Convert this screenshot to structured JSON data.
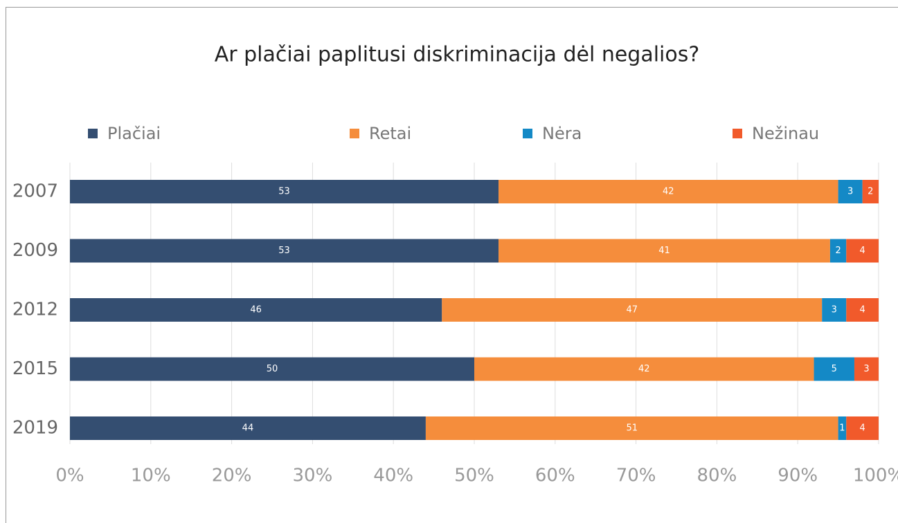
{
  "chart_data": {
    "type": "stacked_bar_horizontal",
    "title": "Ar plačiai paplitusi diskriminacija dėl negalios?",
    "categories": [
      "2007",
      "2009",
      "2012",
      "2015",
      "2019"
    ],
    "series": [
      {
        "name": "Plačiai",
        "color": "#344e71",
        "values": [
          53,
          53,
          46,
          50,
          44
        ]
      },
      {
        "name": "Retai",
        "color": "#f58d3c",
        "values": [
          42,
          41,
          47,
          42,
          51
        ]
      },
      {
        "name": "Nėra",
        "color": "#1489c6",
        "values": [
          3,
          2,
          3,
          5,
          1
        ]
      },
      {
        "name": "Nežinau",
        "color": "#f15a2b",
        "values": [
          2,
          4,
          4,
          3,
          4
        ]
      }
    ],
    "xlim": [
      0,
      100
    ],
    "xticks": [
      {
        "value": 0,
        "label": "0%"
      },
      {
        "value": 10,
        "label": "10%"
      },
      {
        "value": 20,
        "label": "20%"
      },
      {
        "value": 30,
        "label": "30%"
      },
      {
        "value": 40,
        "label": "40%"
      },
      {
        "value": 50,
        "label": "50%"
      },
      {
        "value": 60,
        "label": "60%"
      },
      {
        "value": 70,
        "label": "70%"
      },
      {
        "value": 80,
        "label": "80%"
      },
      {
        "value": 90,
        "label": "90%"
      },
      {
        "value": 100,
        "label": "100%"
      }
    ],
    "grid": true,
    "legend": "top"
  }
}
